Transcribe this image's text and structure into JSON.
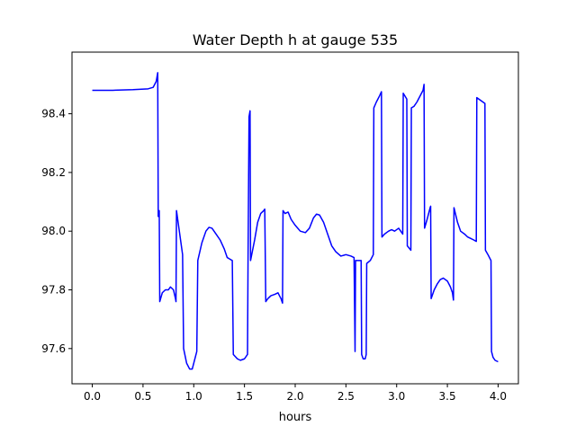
{
  "chart_data": {
    "type": "line",
    "title": "Water Depth h at gauge 535",
    "xlabel": "hours",
    "ylabel": "",
    "xlim": [
      -0.2,
      4.2
    ],
    "ylim": [
      97.48,
      98.61
    ],
    "xticks": [
      0.0,
      0.5,
      1.0,
      1.5,
      2.0,
      2.5,
      3.0,
      3.5,
      4.0
    ],
    "xtick_labels": [
      "0.0",
      "0.5",
      "1.0",
      "1.5",
      "2.0",
      "2.5",
      "3.0",
      "3.5",
      "4.0"
    ],
    "yticks": [
      97.6,
      97.8,
      98.0,
      98.2,
      98.4
    ],
    "ytick_labels": [
      "97.6",
      "97.8",
      "98.0",
      "98.2",
      "98.4"
    ],
    "grid": false,
    "series": [
      {
        "color": "#0000ff",
        "points": [
          [
            0.0,
            98.48
          ],
          [
            0.2,
            98.48
          ],
          [
            0.4,
            98.482
          ],
          [
            0.55,
            98.485
          ],
          [
            0.6,
            98.49
          ],
          [
            0.63,
            98.51
          ],
          [
            0.645,
            98.54
          ],
          [
            0.65,
            98.05
          ],
          [
            0.66,
            98.07
          ],
          [
            0.665,
            97.76
          ],
          [
            0.69,
            97.79
          ],
          [
            0.72,
            97.8
          ],
          [
            0.75,
            97.8
          ],
          [
            0.77,
            97.81
          ],
          [
            0.8,
            97.8
          ],
          [
            0.82,
            97.77
          ],
          [
            0.825,
            97.76
          ],
          [
            0.83,
            98.07
          ],
          [
            0.89,
            97.92
          ],
          [
            0.9,
            97.6
          ],
          [
            0.93,
            97.55
          ],
          [
            0.96,
            97.53
          ],
          [
            0.985,
            97.53
          ],
          [
            1.0,
            97.55
          ],
          [
            1.03,
            97.59
          ],
          [
            1.04,
            97.9
          ],
          [
            1.08,
            97.96
          ],
          [
            1.12,
            98.0
          ],
          [
            1.15,
            98.013
          ],
          [
            1.18,
            98.01
          ],
          [
            1.22,
            97.99
          ],
          [
            1.26,
            97.97
          ],
          [
            1.3,
            97.94
          ],
          [
            1.33,
            97.91
          ],
          [
            1.38,
            97.9
          ],
          [
            1.39,
            97.58
          ],
          [
            1.43,
            97.565
          ],
          [
            1.46,
            97.56
          ],
          [
            1.5,
            97.565
          ],
          [
            1.53,
            97.58
          ],
          [
            1.535,
            97.89
          ],
          [
            1.545,
            98.39
          ],
          [
            1.555,
            98.41
          ],
          [
            1.56,
            97.9
          ],
          [
            1.6,
            97.97
          ],
          [
            1.63,
            98.03
          ],
          [
            1.66,
            98.06
          ],
          [
            1.69,
            98.07
          ],
          [
            1.7,
            98.075
          ],
          [
            1.71,
            97.76
          ],
          [
            1.73,
            97.77
          ],
          [
            1.76,
            97.78
          ],
          [
            1.8,
            97.785
          ],
          [
            1.83,
            97.79
          ],
          [
            1.86,
            97.77
          ],
          [
            1.875,
            97.755
          ],
          [
            1.88,
            98.07
          ],
          [
            1.9,
            98.06
          ],
          [
            1.93,
            98.065
          ],
          [
            1.96,
            98.04
          ],
          [
            2.0,
            98.02
          ],
          [
            2.05,
            98.0
          ],
          [
            2.1,
            97.995
          ],
          [
            2.14,
            98.01
          ],
          [
            2.18,
            98.045
          ],
          [
            2.21,
            98.058
          ],
          [
            2.24,
            98.055
          ],
          [
            2.28,
            98.03
          ],
          [
            2.32,
            97.99
          ],
          [
            2.36,
            97.95
          ],
          [
            2.4,
            97.93
          ],
          [
            2.45,
            97.915
          ],
          [
            2.5,
            97.92
          ],
          [
            2.55,
            97.915
          ],
          [
            2.58,
            97.91
          ],
          [
            2.59,
            97.59
          ],
          [
            2.595,
            97.9
          ],
          [
            2.62,
            97.9
          ],
          [
            2.65,
            97.9
          ],
          [
            2.655,
            97.58
          ],
          [
            2.67,
            97.565
          ],
          [
            2.69,
            97.565
          ],
          [
            2.7,
            97.58
          ],
          [
            2.705,
            97.89
          ],
          [
            2.74,
            97.9
          ],
          [
            2.77,
            97.92
          ],
          [
            2.775,
            98.42
          ],
          [
            2.8,
            98.44
          ],
          [
            2.83,
            98.46
          ],
          [
            2.85,
            98.475
          ],
          [
            2.855,
            97.98
          ],
          [
            2.88,
            97.99
          ],
          [
            2.92,
            98.0
          ],
          [
            2.95,
            98.005
          ],
          [
            2.98,
            98.0
          ],
          [
            3.02,
            98.01
          ],
          [
            3.04,
            98.0
          ],
          [
            3.06,
            97.99
          ],
          [
            3.065,
            98.47
          ],
          [
            3.1,
            98.45
          ],
          [
            3.105,
            97.95
          ],
          [
            3.14,
            97.935
          ],
          [
            3.145,
            98.42
          ],
          [
            3.17,
            98.425
          ],
          [
            3.2,
            98.44
          ],
          [
            3.23,
            98.46
          ],
          [
            3.26,
            98.48
          ],
          [
            3.27,
            98.5
          ],
          [
            3.275,
            98.01
          ],
          [
            3.3,
            98.04
          ],
          [
            3.33,
            98.08
          ],
          [
            3.335,
            98.085
          ],
          [
            3.34,
            97.77
          ],
          [
            3.37,
            97.8
          ],
          [
            3.4,
            97.82
          ],
          [
            3.43,
            97.835
          ],
          [
            3.46,
            97.84
          ],
          [
            3.5,
            97.83
          ],
          [
            3.53,
            97.81
          ],
          [
            3.55,
            97.79
          ],
          [
            3.56,
            97.765
          ],
          [
            3.565,
            98.08
          ],
          [
            3.6,
            98.03
          ],
          [
            3.63,
            98.0
          ],
          [
            3.67,
            97.99
          ],
          [
            3.7,
            97.98
          ],
          [
            3.73,
            97.975
          ],
          [
            3.76,
            97.97
          ],
          [
            3.785,
            97.965
          ],
          [
            3.79,
            98.455
          ],
          [
            3.83,
            98.445
          ],
          [
            3.87,
            98.435
          ],
          [
            3.875,
            97.935
          ],
          [
            3.9,
            97.92
          ],
          [
            3.93,
            97.9
          ],
          [
            3.935,
            97.59
          ],
          [
            3.95,
            97.57
          ],
          [
            3.97,
            97.56
          ],
          [
            4.0,
            97.555
          ]
        ]
      }
    ]
  }
}
